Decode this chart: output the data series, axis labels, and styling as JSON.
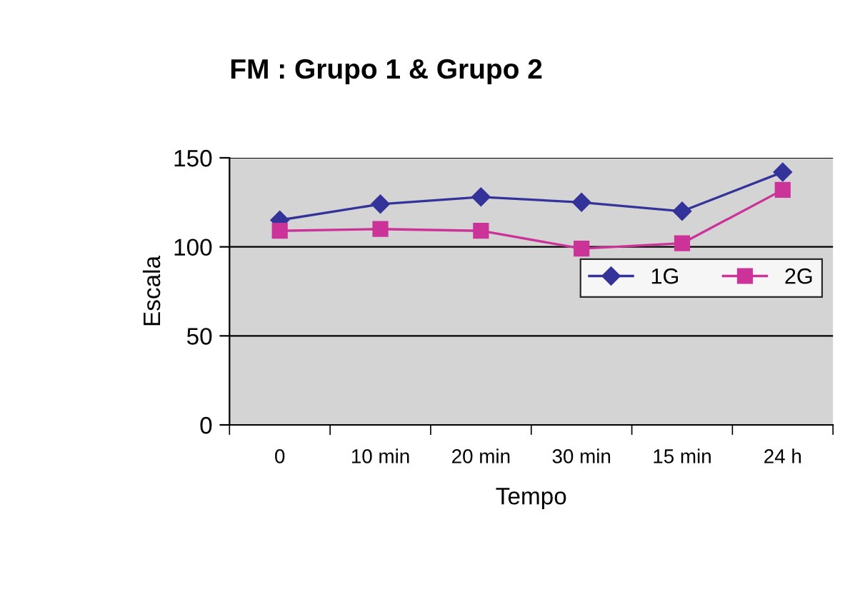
{
  "chart_data": {
    "type": "line",
    "title": "FM : Grupo 1 & Grupo 2",
    "xlabel": "Tempo",
    "ylabel": "Escala",
    "categories": [
      "0",
      "10 min",
      "20 min",
      "30 min",
      "15 min",
      "24 h"
    ],
    "series": [
      {
        "name": "1G",
        "color": "#333399",
        "marker": "diamond",
        "values": [
          115,
          124,
          128,
          125,
          120,
          142
        ]
      },
      {
        "name": "2G",
        "color": "#cc3399",
        "marker": "square",
        "values": [
          109,
          110,
          109,
          99,
          102,
          132
        ]
      }
    ],
    "ylim": [
      0,
      150
    ],
    "yticks": [
      0,
      50,
      100,
      150
    ],
    "grid": "y",
    "legend": "right",
    "line_style": "solid"
  }
}
